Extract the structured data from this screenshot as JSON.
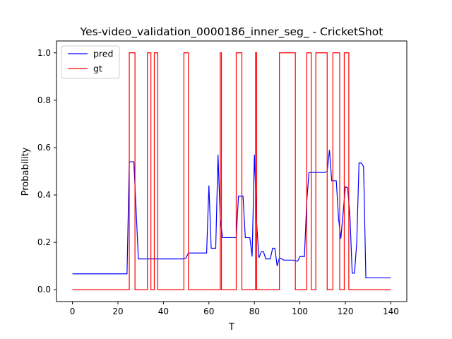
{
  "chart_data": {
    "type": "line",
    "title": "Yes-video_validation_0000186_inner_seg_ - CricketShot",
    "xlabel": "T",
    "ylabel": "Probability",
    "xlim": [
      -7,
      147
    ],
    "ylim": [
      -0.05,
      1.05
    ],
    "xticks": [
      0,
      20,
      40,
      60,
      80,
      100,
      120,
      140
    ],
    "yticks": [
      0.0,
      0.2,
      0.4,
      0.6,
      0.8,
      1.0
    ],
    "xtick_labels": [
      "0",
      "20",
      "40",
      "60",
      "80",
      "100",
      "120",
      "140"
    ],
    "ytick_labels": [
      "0.0",
      "0.2",
      "0.4",
      "0.6",
      "0.8",
      "1.0"
    ],
    "grid": false,
    "legend_position": "top-left",
    "series": [
      {
        "name": "pred",
        "color": "#0000ff",
        "points": [
          [
            0,
            0.067
          ],
          [
            24,
            0.067
          ],
          [
            25,
            0.54
          ],
          [
            27,
            0.54
          ],
          [
            29,
            0.13
          ],
          [
            49,
            0.13
          ],
          [
            50,
            0.135
          ],
          [
            51,
            0.155
          ],
          [
            59,
            0.155
          ],
          [
            60,
            0.44
          ],
          [
            61,
            0.175
          ],
          [
            63,
            0.175
          ],
          [
            64,
            0.57
          ],
          [
            65,
            0.3
          ],
          [
            66,
            0.22
          ],
          [
            72,
            0.22
          ],
          [
            73,
            0.395
          ],
          [
            75,
            0.395
          ],
          [
            76,
            0.22
          ],
          [
            78,
            0.22
          ],
          [
            79,
            0.14
          ],
          [
            80,
            0.57
          ],
          [
            81,
            0.28
          ],
          [
            82,
            0.135
          ],
          [
            83,
            0.16
          ],
          [
            84,
            0.16
          ],
          [
            85,
            0.13
          ],
          [
            87,
            0.13
          ],
          [
            88,
            0.175
          ],
          [
            89,
            0.175
          ],
          [
            90,
            0.1
          ],
          [
            91,
            0.135
          ],
          [
            93,
            0.125
          ],
          [
            97,
            0.125
          ],
          [
            99,
            0.12
          ],
          [
            100,
            0.14
          ],
          [
            102,
            0.14
          ],
          [
            103,
            0.37
          ],
          [
            104,
            0.495
          ],
          [
            111,
            0.495
          ],
          [
            112,
            0.5
          ],
          [
            113,
            0.59
          ],
          [
            114,
            0.46
          ],
          [
            116,
            0.46
          ],
          [
            117,
            0.3
          ],
          [
            118,
            0.215
          ],
          [
            120,
            0.435
          ],
          [
            121,
            0.43
          ],
          [
            122,
            0.31
          ],
          [
            123,
            0.07
          ],
          [
            124,
            0.07
          ],
          [
            125,
            0.2
          ],
          [
            126,
            0.535
          ],
          [
            127,
            0.535
          ],
          [
            128,
            0.52
          ],
          [
            129,
            0.05
          ],
          [
            140,
            0.05
          ]
        ]
      },
      {
        "name": "gt",
        "color": "#ff0000",
        "points": [
          [
            0,
            0
          ],
          [
            25,
            0
          ],
          [
            25,
            1
          ],
          [
            27.5,
            1
          ],
          [
            27.5,
            0
          ],
          [
            33,
            0
          ],
          [
            33,
            1
          ],
          [
            34.5,
            1
          ],
          [
            34.5,
            0
          ],
          [
            36,
            0
          ],
          [
            36,
            1
          ],
          [
            37.5,
            1
          ],
          [
            37.5,
            0
          ],
          [
            49,
            0
          ],
          [
            49,
            1
          ],
          [
            51,
            1
          ],
          [
            51,
            0
          ],
          [
            65,
            0
          ],
          [
            65,
            1
          ],
          [
            65.5,
            1
          ],
          [
            65.5,
            0
          ],
          [
            72,
            0
          ],
          [
            72,
            1
          ],
          [
            74.5,
            1
          ],
          [
            74.5,
            0
          ],
          [
            80.5,
            0
          ],
          [
            80.5,
            1
          ],
          [
            81,
            1
          ],
          [
            81,
            0
          ],
          [
            91,
            0
          ],
          [
            91,
            1
          ],
          [
            98,
            1
          ],
          [
            98,
            0
          ],
          [
            103,
            0
          ],
          [
            103,
            1
          ],
          [
            105,
            1
          ],
          [
            105,
            0
          ],
          [
            107,
            0
          ],
          [
            107,
            1
          ],
          [
            112,
            1
          ],
          [
            112,
            0
          ],
          [
            114.5,
            0
          ],
          [
            114.5,
            1
          ],
          [
            117.5,
            1
          ],
          [
            117.5,
            0
          ],
          [
            119.5,
            0
          ],
          [
            119.5,
            1
          ],
          [
            121.5,
            1
          ],
          [
            121.5,
            0
          ],
          [
            140,
            0
          ]
        ]
      }
    ]
  }
}
